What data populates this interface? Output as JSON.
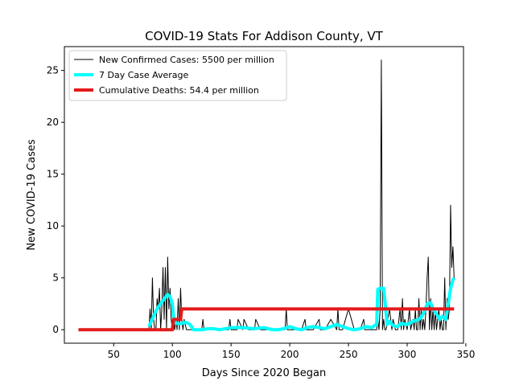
{
  "chart_data": {
    "type": "line",
    "title": "COVID-19 Stats For Addison County, VT",
    "xlabel": "Days Since 2020 Began",
    "ylabel": "New COVID-19 Cases",
    "xlim": [
      8,
      348
    ],
    "ylim": [
      -1.3,
      27.3
    ],
    "xticks": [
      50,
      100,
      150,
      200,
      250,
      300,
      350
    ],
    "yticks": [
      0,
      5,
      10,
      15,
      20,
      25
    ],
    "grid": false,
    "legend_position": "top-left",
    "series": [
      {
        "name": "New Confirmed Cases: 5500 per million",
        "color": "#000000",
        "x": [
          80,
          81,
          82,
          83,
          84,
          85,
          86,
          87,
          88,
          89,
          90,
          91,
          92,
          93,
          94,
          95,
          96,
          97,
          98,
          99,
          100,
          101,
          102,
          103,
          104,
          105,
          106,
          107,
          108,
          109,
          110,
          112,
          115,
          120,
          125,
          126,
          127,
          130,
          140,
          148,
          149,
          150,
          155,
          156,
          160,
          161,
          165,
          170,
          171,
          175,
          180,
          190,
          196,
          197,
          198,
          205,
          210,
          213,
          214,
          220,
          225,
          226,
          230,
          235,
          240,
          241,
          242,
          245,
          250,
          255,
          260,
          263,
          264,
          265,
          270,
          274,
          275,
          276,
          277,
          278,
          279,
          280,
          281,
          282,
          285,
          287,
          288,
          290,
          292,
          294,
          295,
          296,
          297,
          298,
          300,
          302,
          303,
          305,
          306,
          307,
          308,
          309,
          310,
          311,
          312,
          313,
          314,
          315,
          316,
          317,
          318,
          319,
          320,
          321,
          322,
          323,
          324,
          325,
          326,
          327,
          328,
          329,
          330,
          331,
          332,
          333,
          334,
          335,
          336,
          337,
          338,
          339,
          340
        ],
        "y": [
          0,
          2,
          0,
          5,
          1,
          0,
          0,
          3,
          2,
          4,
          0,
          2,
          6,
          1,
          6,
          0,
          7,
          2,
          4,
          1,
          0,
          2,
          0,
          1,
          0,
          3,
          0,
          4,
          1,
          0,
          1,
          0,
          0,
          0,
          0,
          1,
          0,
          0,
          0,
          0,
          1,
          0,
          0,
          1,
          0,
          1,
          0,
          0,
          1,
          0,
          0,
          0,
          0,
          2,
          0,
          0,
          0,
          1,
          0,
          0,
          1,
          0,
          0,
          1,
          0,
          2,
          0,
          0,
          2,
          0,
          0,
          1,
          0,
          0,
          0,
          0,
          1,
          0,
          2,
          26,
          0,
          1,
          0,
          0,
          2,
          0,
          1,
          0,
          0,
          2,
          0,
          3,
          0,
          1,
          0,
          2,
          0,
          1,
          0,
          2,
          0,
          0,
          3,
          0,
          2,
          0,
          1,
          0,
          2,
          5,
          7,
          0,
          3,
          0,
          2,
          0,
          2,
          0,
          1,
          2,
          0,
          1,
          0,
          0,
          5,
          0,
          3,
          1,
          2,
          12,
          6,
          8,
          5
        ]
      },
      {
        "name": "7 Day Case Average",
        "color": "#00ffff",
        "x": [
          80,
          82,
          84,
          86,
          88,
          90,
          92,
          94,
          96,
          98,
          100,
          101,
          103,
          105,
          107,
          108,
          110,
          112,
          115,
          118,
          122,
          126,
          130,
          135,
          140,
          145,
          150,
          160,
          170,
          178,
          185,
          190,
          195,
          200,
          205,
          210,
          215,
          220,
          225,
          230,
          235,
          240,
          245,
          250,
          255,
          260,
          265,
          270,
          272,
          274,
          275,
          277,
          280,
          283,
          285,
          288,
          292,
          295,
          300,
          305,
          310,
          312,
          315,
          317,
          320,
          322,
          325,
          328,
          330,
          333,
          335,
          337,
          339,
          340
        ],
        "y": [
          0.3,
          0.8,
          1.3,
          1.8,
          2.2,
          2.5,
          2.8,
          3.1,
          3.4,
          3.2,
          2.5,
          1.2,
          0.6,
          0.6,
          0.6,
          0.6,
          0.7,
          0.7,
          0.5,
          0.0,
          0.0,
          0.0,
          0.1,
          0.1,
          0.0,
          0.1,
          0.2,
          0.2,
          0.1,
          0.2,
          0.0,
          0.0,
          0.1,
          0.3,
          0.1,
          0.0,
          0.2,
          0.3,
          0.2,
          0.1,
          0.3,
          0.5,
          0.3,
          0.1,
          0.0,
          0.1,
          0.3,
          0.2,
          0.4,
          0.5,
          3.9,
          4.0,
          4.0,
          0.5,
          0.8,
          0.4,
          0.3,
          0.6,
          0.5,
          0.8,
          1.0,
          1.2,
          1.8,
          2.5,
          2.6,
          2.0,
          1.5,
          1.0,
          1.3,
          1.0,
          2.5,
          4.0,
          4.8,
          5.0
        ]
      },
      {
        "name": "Cumulative Deaths: 54.4 per million",
        "color": "#e41a1c",
        "x": [
          20,
          100,
          101,
          107,
          108,
          340
        ],
        "y": [
          0,
          0,
          1,
          1,
          2,
          2
        ]
      }
    ]
  }
}
